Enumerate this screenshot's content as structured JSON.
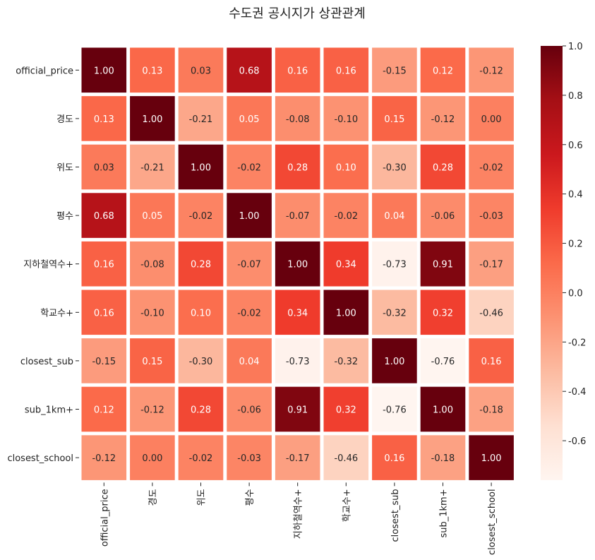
{
  "chart_data": {
    "type": "heatmap",
    "title": "수도권 공시지가 상관관계",
    "labels": [
      "official_price",
      "경도",
      "위도",
      "평수",
      "지하철역수+",
      "학교수+",
      "closest_sub",
      "sub_1km+",
      "closest_school"
    ],
    "matrix": [
      [
        1.0,
        0.13,
        0.03,
        0.68,
        0.16,
        0.16,
        -0.15,
        0.12,
        -0.12
      ],
      [
        0.13,
        1.0,
        -0.21,
        0.05,
        -0.08,
        -0.1,
        0.15,
        -0.12,
        0.0
      ],
      [
        0.03,
        -0.21,
        1.0,
        -0.02,
        0.28,
        0.1,
        -0.3,
        0.28,
        -0.02
      ],
      [
        0.68,
        0.05,
        -0.02,
        1.0,
        -0.07,
        -0.02,
        0.04,
        -0.06,
        -0.03
      ],
      [
        0.16,
        -0.08,
        0.28,
        -0.07,
        1.0,
        0.34,
        -0.73,
        0.91,
        -0.17
      ],
      [
        0.16,
        -0.1,
        0.1,
        -0.02,
        0.34,
        1.0,
        -0.32,
        0.32,
        -0.46
      ],
      [
        -0.15,
        0.15,
        -0.3,
        0.04,
        -0.73,
        -0.32,
        1.0,
        -0.76,
        0.16
      ],
      [
        0.12,
        -0.12,
        0.28,
        -0.06,
        0.91,
        0.32,
        -0.76,
        1.0,
        -0.18
      ],
      [
        -0.12,
        0.0,
        -0.02,
        -0.03,
        -0.17,
        -0.46,
        0.16,
        -0.18,
        1.0
      ]
    ],
    "value_format": "0.00",
    "colormap": "Reds",
    "vmin": -0.76,
    "vmax": 1.0,
    "colorbar_ticks": [
      "1.0",
      "0.8",
      "0.6",
      "0.4",
      "0.2",
      "0.0",
      "-0.2",
      "-0.4",
      "-0.6"
    ],
    "colors": {
      "cell_border": "#ffffff",
      "label_light": "#ffffff",
      "label_dark": "#262626"
    }
  }
}
